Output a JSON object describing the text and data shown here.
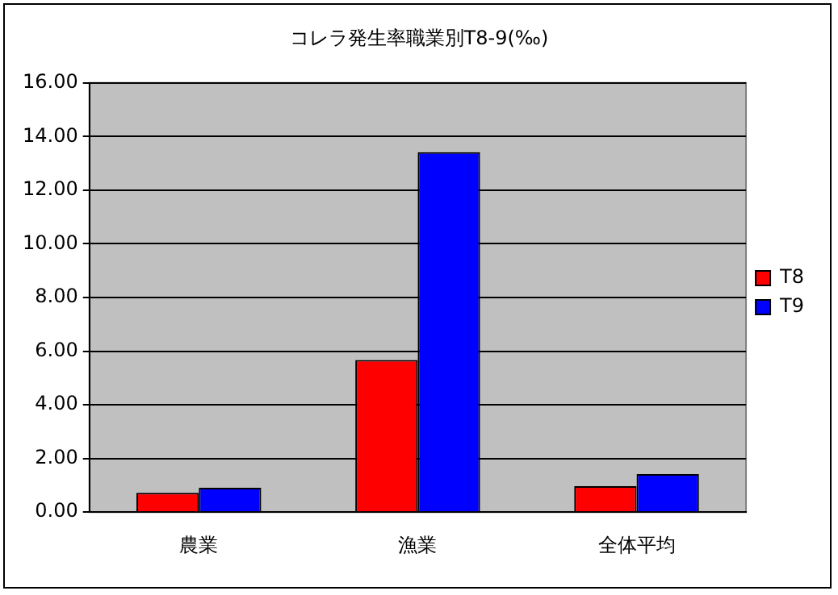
{
  "chart_data": {
    "type": "bar",
    "title": "コレラ発生率職業別T8-9(‰)",
    "categories": [
      "農業",
      "漁業",
      "全体平均"
    ],
    "series": [
      {
        "name": "T8",
        "color": "#ff0000",
        "values": [
          0.72,
          5.67,
          0.97
        ]
      },
      {
        "name": "T9",
        "color": "#0000ff",
        "values": [
          0.91,
          13.42,
          1.42
        ]
      }
    ],
    "ylim": [
      0,
      16
    ],
    "yticks": [
      {
        "value": 0,
        "label": "0.00"
      },
      {
        "value": 2,
        "label": "2.00"
      },
      {
        "value": 4,
        "label": "4.00"
      },
      {
        "value": 6,
        "label": "6.00"
      },
      {
        "value": 8,
        "label": "8.00"
      },
      {
        "value": 10,
        "label": "10.00"
      },
      {
        "value": 12,
        "label": "12.00"
      },
      {
        "value": 14,
        "label": "14.00"
      },
      {
        "value": 16,
        "label": "16.00"
      }
    ],
    "grid": "y",
    "legend": "right"
  }
}
